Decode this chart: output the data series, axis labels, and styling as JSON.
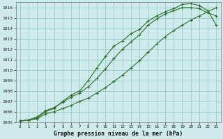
{
  "background_color": "#ceeaea",
  "grid_color": "#9ecece",
  "line_color": "#2d6e2d",
  "title": "Graphe pression niveau de la mer (hPa)",
  "xlim": [
    -0.5,
    23.5
  ],
  "ylim": [
    1005,
    1016.5
  ],
  "xticks": [
    0,
    1,
    2,
    3,
    4,
    5,
    6,
    7,
    8,
    9,
    10,
    11,
    12,
    13,
    14,
    15,
    16,
    17,
    18,
    19,
    20,
    21,
    22,
    23
  ],
  "yticks": [
    1005,
    1006,
    1007,
    1008,
    1009,
    1010,
    1011,
    1012,
    1013,
    1014,
    1015,
    1016
  ],
  "line1_x": [
    0,
    1,
    2,
    3,
    4,
    5,
    6,
    7,
    8,
    9,
    10,
    11,
    12,
    13,
    14,
    15,
    16,
    17,
    18,
    19,
    20,
    21,
    22,
    23
  ],
  "line1_y": [
    1005.1,
    1005.2,
    1005.5,
    1006.1,
    1006.4,
    1006.9,
    1007.4,
    1007.8,
    1008.4,
    1009.2,
    1010.1,
    1011.1,
    1012.0,
    1012.7,
    1013.4,
    1014.3,
    1014.9,
    1015.4,
    1015.7,
    1016.0,
    1016.0,
    1015.9,
    1015.5,
    1015.2
  ],
  "line2_x": [
    0,
    1,
    2,
    3,
    4,
    5,
    6,
    7,
    8,
    9,
    10,
    11,
    12,
    13,
    14,
    15,
    16,
    17,
    18,
    19,
    20,
    21,
    22,
    23
  ],
  "line2_y": [
    1005.1,
    1005.2,
    1005.4,
    1006.0,
    1006.3,
    1007.0,
    1007.6,
    1008.0,
    1009.0,
    1010.2,
    1011.3,
    1012.3,
    1012.8,
    1013.5,
    1013.9,
    1014.7,
    1015.2,
    1015.6,
    1015.9,
    1016.3,
    1016.4,
    1016.2,
    1015.7,
    1014.3
  ],
  "line3_x": [
    0,
    1,
    2,
    3,
    4,
    5,
    6,
    7,
    8,
    9,
    10,
    11,
    12,
    13,
    14,
    15,
    16,
    17,
    18,
    19,
    20,
    21,
    22,
    23
  ],
  "line3_y": [
    1005.1,
    1005.2,
    1005.3,
    1005.8,
    1006.0,
    1006.3,
    1006.6,
    1007.0,
    1007.3,
    1007.8,
    1008.3,
    1008.9,
    1009.5,
    1010.2,
    1010.9,
    1011.7,
    1012.5,
    1013.2,
    1013.8,
    1014.3,
    1014.8,
    1015.2,
    1015.6,
    1016.0
  ]
}
